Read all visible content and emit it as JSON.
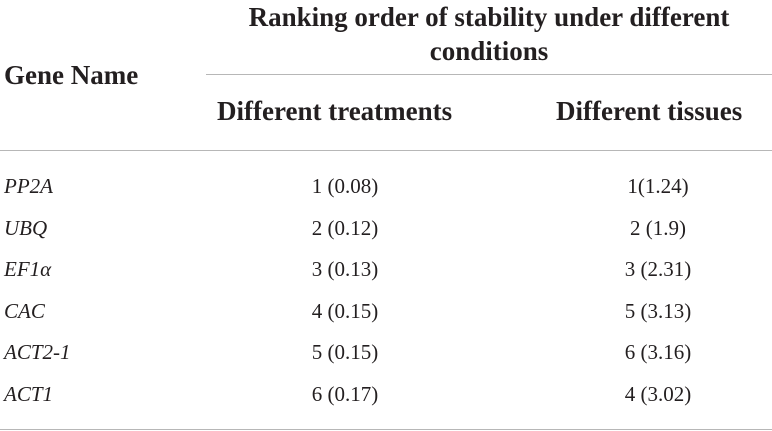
{
  "table": {
    "group_header": "Ranking order of stability under different conditions",
    "gene_header": "Gene Name",
    "columns": [
      "Different treatments",
      "Different tissues"
    ],
    "rows": [
      {
        "gene": "PP2A",
        "treatments": "1 (0.08)",
        "tissues": "1(1.24)"
      },
      {
        "gene": "UBQ",
        "treatments": "2 (0.12)",
        "tissues": "2 (1.9)"
      },
      {
        "gene": "EF1α",
        "treatments": "3 (0.13)",
        "tissues": "3 (2.31)"
      },
      {
        "gene": "CAC",
        "treatments": "4 (0.15)",
        "tissues": "5 (3.13)"
      },
      {
        "gene": "ACT2-1",
        "treatments": "5 (0.15)",
        "tissues": "6 (3.16)"
      },
      {
        "gene": "ACT1",
        "treatments": "6 (0.17)",
        "tissues": "4 (3.02)"
      }
    ]
  }
}
